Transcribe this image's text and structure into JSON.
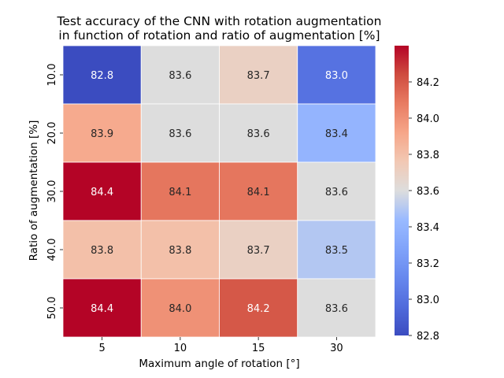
{
  "chart_data": {
    "type": "heatmap",
    "title_line1": "Test accuracy of the CNN with rotation augmentation",
    "title_line2": "in function of rotation and ratio of augmentation [%]",
    "xlabel": "Maximum angle of rotation [°]",
    "ylabel": "Ratio of augmentation [%]",
    "x_categories": [
      "5",
      "10",
      "15",
      "30"
    ],
    "y_categories": [
      "10.0",
      "20.0",
      "30.0",
      "40.0",
      "50.0"
    ],
    "values": [
      [
        82.8,
        83.6,
        83.7,
        83.0
      ],
      [
        83.9,
        83.6,
        83.6,
        83.4
      ],
      [
        84.4,
        84.1,
        84.1,
        83.6
      ],
      [
        83.8,
        83.8,
        83.7,
        83.5
      ],
      [
        84.4,
        84.0,
        84.2,
        83.6
      ]
    ],
    "colormap": "coolwarm",
    "colorbar_range": [
      82.8,
      84.4
    ],
    "colorbar_ticks": [
      "82.8",
      "83.0",
      "83.2",
      "83.4",
      "83.6",
      "83.8",
      "84.0",
      "84.2"
    ]
  }
}
